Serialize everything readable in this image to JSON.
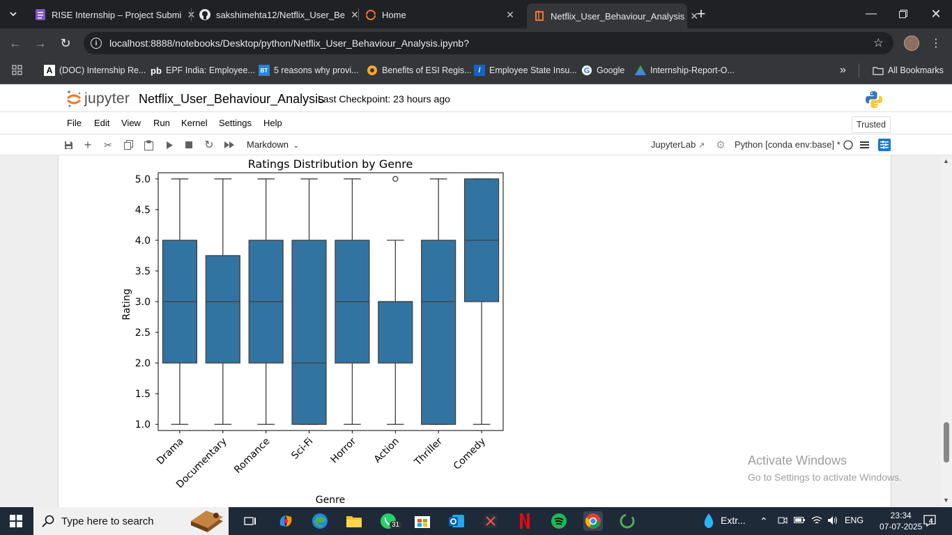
{
  "browser": {
    "tabs": [
      {
        "title": "RISE Internship – Project Submi"
      },
      {
        "title": "sakshimehta12/Netflix_User_Be"
      },
      {
        "title": "Home"
      },
      {
        "title": "Netflix_User_Behaviour_Analysis"
      }
    ],
    "url": "localhost:8888/notebooks/Desktop/python/Netflix_User_Behaviour_Analysis.ipynb?",
    "bookmarks": [
      {
        "label": "(DOC) Internship Re..."
      },
      {
        "label": "EPF India: Employee..."
      },
      {
        "label": "5 reasons why provi..."
      },
      {
        "label": "Benefits of ESI Regis..."
      },
      {
        "label": "Employee State Insu..."
      },
      {
        "label": "Google"
      },
      {
        "label": "Internship-Report-O..."
      }
    ],
    "all_bookmarks": "All Bookmarks"
  },
  "jupyter": {
    "logo_text": "jupyter",
    "notebook_title": "Netflix_User_Behaviour_Analysis",
    "checkpoint": "Last Checkpoint: 23 hours ago",
    "menu": [
      "File",
      "Edit",
      "View",
      "Run",
      "Kernel",
      "Settings",
      "Help"
    ],
    "trusted": "Trusted",
    "cell_type": "Markdown",
    "jupyterlab_link": "JupyterLab",
    "kernel_name": "Python [conda env:base] *"
  },
  "chart_data": {
    "type": "box",
    "title": "Ratings Distribution by Genre",
    "xlabel": "Genre",
    "ylabel": "Rating",
    "ylim": [
      0.9,
      5.1
    ],
    "yticks": [
      "1.0",
      "1.5",
      "2.0",
      "2.5",
      "3.0",
      "3.5",
      "4.0",
      "4.5",
      "5.0"
    ],
    "color": "#3274a1",
    "categories": [
      "Drama",
      "Documentary",
      "Romance",
      "Sci-Fi",
      "Horror",
      "Action",
      "Thriller",
      "Comedy"
    ],
    "boxes": [
      {
        "whislo": 1.0,
        "q1": 2.0,
        "med": 3.0,
        "q3": 4.0,
        "whishi": 5.0,
        "fliers": []
      },
      {
        "whislo": 1.0,
        "q1": 2.0,
        "med": 3.0,
        "q3": 3.75,
        "whishi": 5.0,
        "fliers": []
      },
      {
        "whislo": 1.0,
        "q1": 2.0,
        "med": 3.0,
        "q3": 4.0,
        "whishi": 5.0,
        "fliers": []
      },
      {
        "whislo": 1.0,
        "q1": 1.0,
        "med": 2.0,
        "q3": 4.0,
        "whishi": 5.0,
        "fliers": []
      },
      {
        "whislo": 1.0,
        "q1": 2.0,
        "med": 3.0,
        "q3": 4.0,
        "whishi": 5.0,
        "fliers": []
      },
      {
        "whislo": 1.0,
        "q1": 2.0,
        "med": 3.0,
        "q3": 3.0,
        "whishi": 4.0,
        "fliers": [
          5.0
        ]
      },
      {
        "whislo": 1.0,
        "q1": 1.0,
        "med": 3.0,
        "q3": 4.0,
        "whishi": 5.0,
        "fliers": []
      },
      {
        "whislo": 1.0,
        "q1": 3.0,
        "med": 4.0,
        "q3": 5.0,
        "whishi": 5.0,
        "fliers": []
      }
    ]
  },
  "watermark": {
    "line1": "Activate Windows",
    "line2": "Go to Settings to activate Windows."
  },
  "taskbar": {
    "search_placeholder": "Type here to search",
    "whatsapp_badge": "31",
    "tray_app": "Extr...",
    "language": "ENG",
    "time": "23:34",
    "date": "07-07-2025",
    "notifications": "4"
  }
}
